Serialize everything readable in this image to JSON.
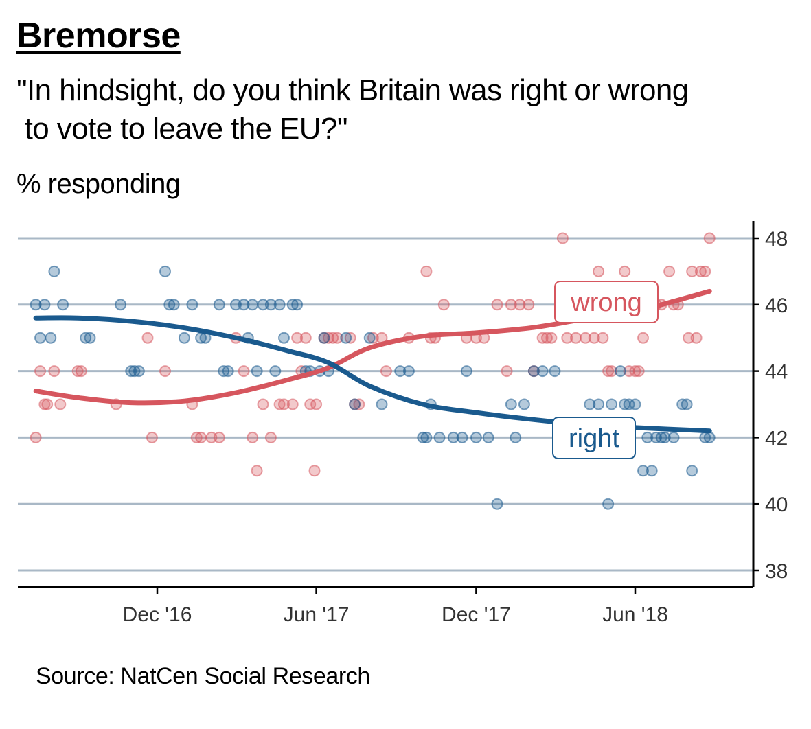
{
  "title": "Bremorse",
  "subtitle": "\"In hindsight, do you think Britain was right or wrong\n to vote to leave the EU?\"",
  "ylabel": "% responding",
  "source": "Source: NatCen Social Research",
  "colors": {
    "wrong": "#d6565e",
    "right": "#1a5a8e",
    "grid": "#a9b8c6",
    "axis": "#000000"
  },
  "chart_data": {
    "type": "scatter",
    "title": "Bremorse",
    "xlabel": "",
    "ylabel": "% responding",
    "xlim": [
      "2016-07-01",
      "2018-09-15"
    ],
    "ylim": [
      37.5,
      48.5
    ],
    "x_ticks": [
      {
        "date": "2016-12-01",
        "label": "Dec '16"
      },
      {
        "date": "2017-06-01",
        "label": "Jun '17"
      },
      {
        "date": "2017-12-01",
        "label": "Dec '17"
      },
      {
        "date": "2018-06-01",
        "label": "Jun '18"
      }
    ],
    "y_ticks": [
      38,
      40,
      42,
      44,
      46,
      48
    ],
    "grid": true,
    "series": [
      {
        "name": "wrong",
        "label": "wrong",
        "points": [
          [
            "2016-07-15",
            42
          ],
          [
            "2016-07-20",
            44
          ],
          [
            "2016-07-25",
            43
          ],
          [
            "2016-07-28",
            43
          ],
          [
            "2016-08-05",
            44
          ],
          [
            "2016-08-12",
            43
          ],
          [
            "2016-09-01",
            44
          ],
          [
            "2016-09-05",
            44
          ],
          [
            "2016-10-15",
            43
          ],
          [
            "2016-11-20",
            45
          ],
          [
            "2016-11-25",
            42
          ],
          [
            "2016-12-10",
            44
          ],
          [
            "2017-01-10",
            43
          ],
          [
            "2017-01-15",
            42
          ],
          [
            "2017-01-20",
            42
          ],
          [
            "2017-02-01",
            42
          ],
          [
            "2017-02-10",
            42
          ],
          [
            "2017-03-01",
            45
          ],
          [
            "2017-03-10",
            44
          ],
          [
            "2017-03-20",
            42
          ],
          [
            "2017-03-25",
            41
          ],
          [
            "2017-04-01",
            43
          ],
          [
            "2017-04-10",
            42
          ],
          [
            "2017-04-20",
            43
          ],
          [
            "2017-04-25",
            43
          ],
          [
            "2017-05-05",
            43
          ],
          [
            "2017-05-10",
            45
          ],
          [
            "2017-05-15",
            44
          ],
          [
            "2017-05-20",
            45
          ],
          [
            "2017-05-25",
            43
          ],
          [
            "2017-05-30",
            41
          ],
          [
            "2017-06-01",
            43
          ],
          [
            "2017-06-10",
            45
          ],
          [
            "2017-06-15",
            45
          ],
          [
            "2017-06-20",
            45
          ],
          [
            "2017-06-25",
            45
          ],
          [
            "2017-07-10",
            45
          ],
          [
            "2017-07-15",
            43
          ],
          [
            "2017-07-20",
            43
          ],
          [
            "2017-08-05",
            45
          ],
          [
            "2017-08-15",
            45
          ],
          [
            "2017-08-20",
            44
          ],
          [
            "2017-09-15",
            45
          ],
          [
            "2017-10-05",
            47
          ],
          [
            "2017-10-10",
            45
          ],
          [
            "2017-10-15",
            45
          ],
          [
            "2017-10-25",
            46
          ],
          [
            "2017-11-20",
            45
          ],
          [
            "2017-12-01",
            45
          ],
          [
            "2017-12-10",
            45
          ],
          [
            "2017-12-25",
            46
          ],
          [
            "2018-01-05",
            44
          ],
          [
            "2018-01-10",
            46
          ],
          [
            "2018-01-20",
            46
          ],
          [
            "2018-01-30",
            46
          ],
          [
            "2018-02-05",
            44
          ],
          [
            "2018-02-15",
            45
          ],
          [
            "2018-02-20",
            45
          ],
          [
            "2018-02-25",
            45
          ],
          [
            "2018-03-10",
            48
          ],
          [
            "2018-03-15",
            45
          ],
          [
            "2018-03-25",
            45
          ],
          [
            "2018-04-05",
            45
          ],
          [
            "2018-04-15",
            45
          ],
          [
            "2018-04-20",
            47
          ],
          [
            "2018-04-25",
            45
          ],
          [
            "2018-05-01",
            44
          ],
          [
            "2018-05-05",
            44
          ],
          [
            "2018-05-20",
            47
          ],
          [
            "2018-05-25",
            44
          ],
          [
            "2018-06-01",
            44
          ],
          [
            "2018-06-05",
            44
          ],
          [
            "2018-06-10",
            45
          ],
          [
            "2018-06-15",
            46
          ],
          [
            "2018-06-20",
            46
          ],
          [
            "2018-06-25",
            46
          ],
          [
            "2018-07-01",
            46
          ],
          [
            "2018-07-10",
            47
          ],
          [
            "2018-07-15",
            46
          ],
          [
            "2018-07-20",
            46
          ],
          [
            "2018-08-01",
            45
          ],
          [
            "2018-08-05",
            47
          ],
          [
            "2018-08-10",
            45
          ],
          [
            "2018-08-15",
            47
          ],
          [
            "2018-08-20",
            47
          ],
          [
            "2018-08-25",
            48
          ]
        ],
        "trend": [
          [
            "2016-07-15",
            43.4
          ],
          [
            "2016-09-01",
            43.2
          ],
          [
            "2016-11-01",
            43.05
          ],
          [
            "2017-01-01",
            43.1
          ],
          [
            "2017-03-01",
            43.35
          ],
          [
            "2017-05-01",
            43.75
          ],
          [
            "2017-06-15",
            44.1
          ],
          [
            "2017-08-01",
            44.7
          ],
          [
            "2017-10-01",
            45.05
          ],
          [
            "2017-12-01",
            45.15
          ],
          [
            "2018-02-01",
            45.3
          ],
          [
            "2018-04-01",
            45.55
          ],
          [
            "2018-06-01",
            45.8
          ],
          [
            "2018-08-25",
            46.4
          ]
        ]
      },
      {
        "name": "right",
        "label": "right",
        "points": [
          [
            "2016-07-15",
            46
          ],
          [
            "2016-07-20",
            45
          ],
          [
            "2016-07-25",
            46
          ],
          [
            "2016-08-01",
            45
          ],
          [
            "2016-08-05",
            47
          ],
          [
            "2016-08-15",
            46
          ],
          [
            "2016-09-10",
            45
          ],
          [
            "2016-09-15",
            45
          ],
          [
            "2016-10-20",
            46
          ],
          [
            "2016-11-01",
            44
          ],
          [
            "2016-11-05",
            44
          ],
          [
            "2016-11-10",
            44
          ],
          [
            "2016-12-10",
            47
          ],
          [
            "2016-12-15",
            46
          ],
          [
            "2016-12-20",
            46
          ],
          [
            "2017-01-01",
            45
          ],
          [
            "2017-01-10",
            46
          ],
          [
            "2017-01-20",
            45
          ],
          [
            "2017-01-25",
            45
          ],
          [
            "2017-02-10",
            46
          ],
          [
            "2017-02-15",
            44
          ],
          [
            "2017-02-20",
            44
          ],
          [
            "2017-03-01",
            46
          ],
          [
            "2017-03-10",
            46
          ],
          [
            "2017-03-15",
            45
          ],
          [
            "2017-03-20",
            46
          ],
          [
            "2017-03-25",
            44
          ],
          [
            "2017-04-01",
            46
          ],
          [
            "2017-04-10",
            46
          ],
          [
            "2017-04-15",
            44
          ],
          [
            "2017-04-20",
            46
          ],
          [
            "2017-04-25",
            45
          ],
          [
            "2017-05-05",
            46
          ],
          [
            "2017-05-10",
            46
          ],
          [
            "2017-05-20",
            44
          ],
          [
            "2017-05-25",
            44
          ],
          [
            "2017-06-05",
            44
          ],
          [
            "2017-06-10",
            45
          ],
          [
            "2017-06-15",
            44
          ],
          [
            "2017-07-05",
            45
          ],
          [
            "2017-07-15",
            43
          ],
          [
            "2017-08-01",
            45
          ],
          [
            "2017-08-15",
            43
          ],
          [
            "2017-09-05",
            44
          ],
          [
            "2017-09-15",
            44
          ],
          [
            "2017-10-01",
            42
          ],
          [
            "2017-10-05",
            42
          ],
          [
            "2017-10-10",
            43
          ],
          [
            "2017-10-20",
            42
          ],
          [
            "2017-11-05",
            42
          ],
          [
            "2017-11-15",
            42
          ],
          [
            "2017-11-20",
            44
          ],
          [
            "2017-12-01",
            42
          ],
          [
            "2017-12-15",
            42
          ],
          [
            "2017-12-25",
            40
          ],
          [
            "2018-01-10",
            43
          ],
          [
            "2018-01-15",
            42
          ],
          [
            "2018-01-25",
            43
          ],
          [
            "2018-02-05",
            44
          ],
          [
            "2018-02-15",
            44
          ],
          [
            "2018-03-01",
            44
          ],
          [
            "2018-03-10",
            42
          ],
          [
            "2018-04-10",
            43
          ],
          [
            "2018-04-20",
            43
          ],
          [
            "2018-05-01",
            40
          ],
          [
            "2018-05-05",
            43
          ],
          [
            "2018-05-15",
            44
          ],
          [
            "2018-05-20",
            43
          ],
          [
            "2018-05-25",
            43
          ],
          [
            "2018-06-01",
            43
          ],
          [
            "2018-06-10",
            41
          ],
          [
            "2018-06-15",
            42
          ],
          [
            "2018-06-20",
            41
          ],
          [
            "2018-06-25",
            42
          ],
          [
            "2018-07-01",
            42
          ],
          [
            "2018-07-05",
            42
          ],
          [
            "2018-07-15",
            42
          ],
          [
            "2018-07-25",
            43
          ],
          [
            "2018-07-30",
            43
          ],
          [
            "2018-08-05",
            41
          ],
          [
            "2018-08-20",
            42
          ],
          [
            "2018-08-25",
            42
          ]
        ],
        "trend": [
          [
            "2016-07-15",
            45.6
          ],
          [
            "2016-09-01",
            45.6
          ],
          [
            "2016-11-01",
            45.5
          ],
          [
            "2017-01-01",
            45.3
          ],
          [
            "2017-03-01",
            45.0
          ],
          [
            "2017-05-01",
            44.6
          ],
          [
            "2017-06-15",
            44.25
          ],
          [
            "2017-08-01",
            43.55
          ],
          [
            "2017-10-01",
            43.0
          ],
          [
            "2017-12-01",
            42.75
          ],
          [
            "2018-02-01",
            42.55
          ],
          [
            "2018-04-01",
            42.4
          ],
          [
            "2018-06-01",
            42.3
          ],
          [
            "2018-08-25",
            42.2
          ]
        ]
      }
    ]
  }
}
